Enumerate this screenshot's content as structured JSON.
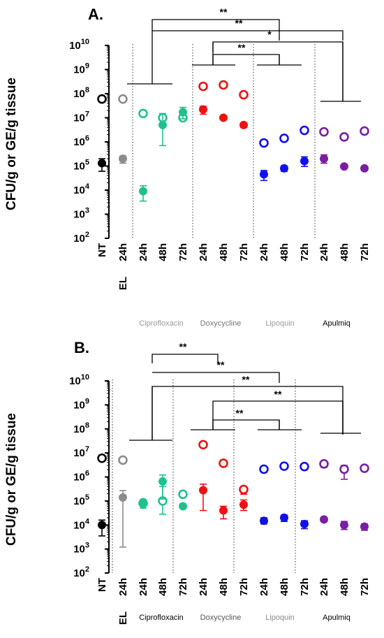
{
  "chart_data": [
    {
      "type": "scatter",
      "panel_label": "A.",
      "ylabel": "CFU/g or GE/g tissue",
      "yscale": "log",
      "ylim": [
        100,
        10000000000
      ],
      "y_ticks": [
        {
          "base": "10",
          "exp": "2"
        },
        {
          "base": "10",
          "exp": "3"
        },
        {
          "base": "10",
          "exp": "4"
        },
        {
          "base": "10",
          "exp": "5"
        },
        {
          "base": "10",
          "exp": "6"
        },
        {
          "base": "10",
          "exp": "7"
        },
        {
          "base": "10",
          "exp": "8"
        },
        {
          "base": "10",
          "exp": "9"
        },
        {
          "base": "10",
          "exp": "10"
        }
      ],
      "categories": [
        "NT",
        "24h",
        "24h",
        "48h",
        "72h",
        "24h",
        "48h",
        "72h",
        "24h",
        "48h",
        "72h",
        "24h",
        "48h",
        "72h"
      ],
      "el_label": "EL",
      "groups": [
        {
          "name": "Ciprofloxacin",
          "color": "#9a9a9a"
        },
        {
          "name": "Doxycycline",
          "color": "#777777"
        },
        {
          "name": "Lipoquin",
          "color": "#9a9a9a"
        },
        {
          "name": "Apulmiq",
          "color": "#000000"
        }
      ],
      "series": [
        {
          "name": "open",
          "marker": "open",
          "values": [
            60000000,
            60000000,
            15000000,
            10000000,
            10000000,
            200000000,
            230000000,
            90000000,
            900000,
            1400000,
            3000000,
            2600000,
            1600000,
            2800000
          ]
        },
        {
          "name": "filled",
          "marker": "filled",
          "values": [
            130000,
            200000,
            9000,
            5000000,
            17000000,
            22000000,
            10000000,
            5000000,
            45000,
            80000,
            160000,
            200000,
            95000,
            80000
          ],
          "err_low": [
            60000,
            130000,
            3500,
            700000,
            9000000,
            14000000,
            9000000,
            4000000,
            25000,
            60000,
            95000,
            130000,
            85000,
            65000
          ],
          "err_high": [
            200000,
            260000,
            15000,
            15000000,
            27000000,
            30000000,
            11000000,
            6000000,
            65000,
            100000,
            240000,
            290000,
            105000,
            95000
          ]
        }
      ],
      "point_colors": [
        "#000000",
        "#8c8c8c",
        "#1ec18e",
        "#1ec18e",
        "#1ec18e",
        "#ee1111",
        "#ee1111",
        "#ee1111",
        "#1010ee",
        "#1010ee",
        "#1010ee",
        "#7a1fa2",
        "#7a1fa2",
        "#7a1fa2"
      ],
      "significance": [
        "**",
        "**",
        "*",
        "**"
      ]
    },
    {
      "type": "scatter",
      "panel_label": "B.",
      "ylabel": "CFU/g or GE/g tissue",
      "yscale": "log",
      "ylim": [
        100,
        10000000000
      ],
      "y_ticks": [
        {
          "base": "10",
          "exp": "2"
        },
        {
          "base": "10",
          "exp": "3"
        },
        {
          "base": "10",
          "exp": "4"
        },
        {
          "base": "10",
          "exp": "5"
        },
        {
          "base": "10",
          "exp": "6"
        },
        {
          "base": "10",
          "exp": "7"
        },
        {
          "base": "10",
          "exp": "8"
        },
        {
          "base": "10",
          "exp": "9"
        },
        {
          "base": "10",
          "exp": "10"
        }
      ],
      "categories": [
        "NT",
        "24h",
        "24h",
        "48h",
        "72h",
        "24h",
        "48h",
        "72h",
        "24h",
        "48h",
        "72h",
        "24h",
        "48h",
        "72h"
      ],
      "el_label": "EL",
      "groups": [
        {
          "name": "Ciprofloxacin",
          "color": "#000000"
        },
        {
          "name": "Doxycycline",
          "color": "#555555"
        },
        {
          "name": "Lipoquin",
          "color": "#8a8a8a"
        },
        {
          "name": "Apulmiq",
          "color": "#000000"
        }
      ],
      "series": [
        {
          "name": "open",
          "marker": "open",
          "values": [
            6000000,
            5000000,
            80000,
            100000,
            190000,
            22000000,
            3700000,
            300000,
            2100000,
            2800000,
            2700000,
            3500000,
            2100000,
            2300000
          ],
          "err_low": [
            null,
            null,
            null,
            28000,
            null,
            null,
            null,
            190000,
            null,
            null,
            2000000,
            2500000,
            800000,
            null
          ],
          "err_high": [
            null,
            null,
            null,
            400000,
            null,
            null,
            null,
            330000,
            null,
            null,
            3200000,
            4000000,
            3000000,
            null
          ]
        },
        {
          "name": "filled",
          "marker": "filled",
          "values": [
            10000,
            140000,
            90000,
            650000,
            60000,
            280000,
            40000,
            70000,
            15000,
            20000,
            11000,
            17000,
            10000,
            8500
          ],
          "err_low": [
            3500,
            1200,
            50000,
            120000,
            50000,
            40000,
            18000,
            40000,
            11000,
            14000,
            7000,
            14000,
            6500,
            6000
          ],
          "err_high": [
            16000,
            270000,
            110000,
            1200000,
            75000,
            500000,
            60000,
            110000,
            20000,
            26000,
            15000,
            21000,
            14000,
            11000
          ]
        }
      ],
      "point_colors": [
        "#000000",
        "#8c8c8c",
        "#1ec18e",
        "#1ec18e",
        "#1ec18e",
        "#ee1111",
        "#ee1111",
        "#ee1111",
        "#1010ee",
        "#1010ee",
        "#1010ee",
        "#7a1fa2",
        "#7a1fa2",
        "#7a1fa2"
      ],
      "significance": [
        "**",
        "**",
        "**",
        "**",
        "**"
      ]
    }
  ]
}
